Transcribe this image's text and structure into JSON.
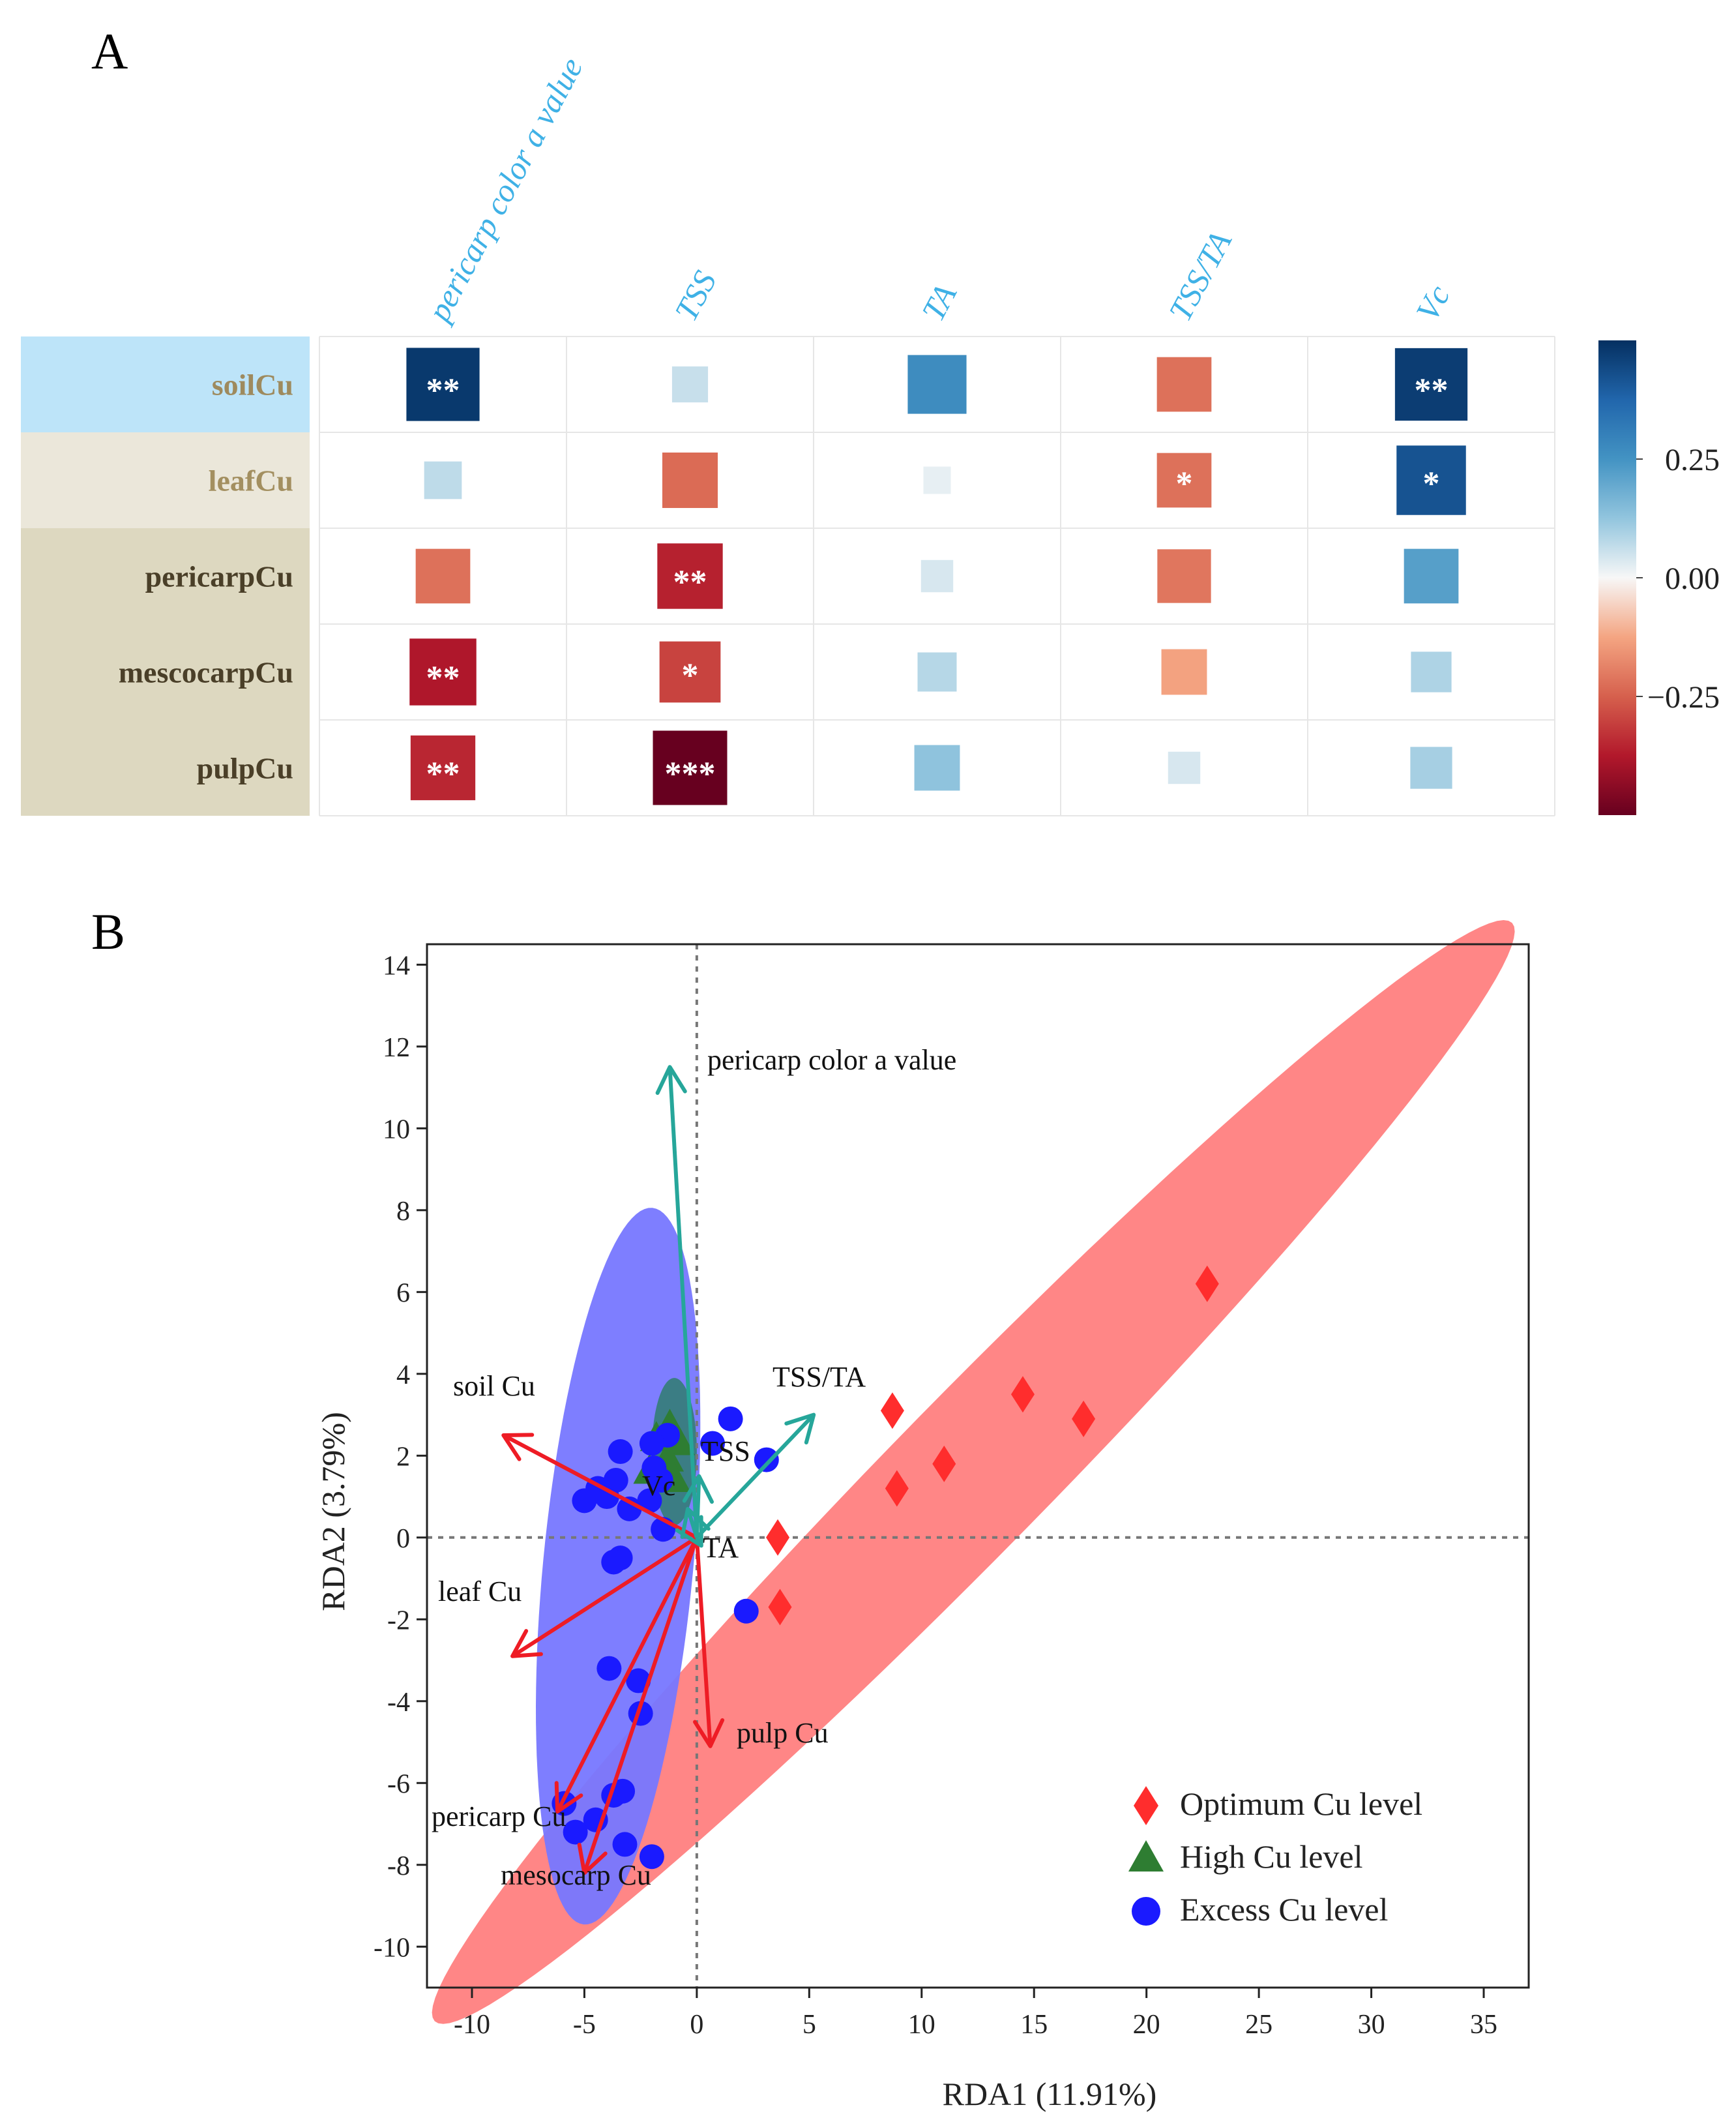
{
  "panel_a_label": "A",
  "panel_b_label": "B",
  "colors": {
    "row_soil_bg": "#bde4f9",
    "row_leaf_bg": "#ebe7da",
    "row_fruit_bg": "#ddd8c0",
    "row_soil_text": "#9e8a5e",
    "row_leaf_text": "#a38f60",
    "row_fruit_text": "#4a3f28",
    "col_text": "#3fb1e6",
    "optimum": "#ff2d2d",
    "high": "#2e7d32",
    "excess": "#1a1aff",
    "ellipse_optimum": "#ff7f7f",
    "ellipse_excess": "#7777ff",
    "ellipse_high": "#2f7d6f",
    "arrow_explanatory": "#ee1c25",
    "arrow_response": "#26a69a"
  },
  "chart_data": [
    {
      "type": "heatmap",
      "title": "",
      "columns": [
        "pericarp color a value",
        "TSS",
        "TA",
        "TSS/TA",
        "Vc"
      ],
      "rows": [
        "soilCu",
        "leafCu",
        "pericarpCu",
        "mescocarpCu",
        "pulpCu"
      ],
      "values": [
        [
          0.48,
          0.06,
          0.27,
          -0.22,
          0.47
        ],
        [
          0.07,
          -0.23,
          0.02,
          -0.22,
          0.42
        ],
        [
          -0.22,
          -0.36,
          0.04,
          -0.21,
          0.22
        ],
        [
          -0.38,
          -0.3,
          0.08,
          -0.13,
          0.09
        ],
        [
          -0.35,
          -0.5,
          0.13,
          0.04,
          0.1
        ]
      ],
      "significance": [
        [
          "**",
          "",
          "",
          "",
          "**"
        ],
        [
          "",
          "",
          "",
          "*",
          "*"
        ],
        [
          "",
          "**",
          "",
          "",
          ""
        ],
        [
          "**",
          "*",
          "",
          "",
          ""
        ],
        [
          "**",
          "***",
          "",
          "",
          ""
        ]
      ],
      "colorbar": {
        "min": -0.5,
        "max": 0.5,
        "ticks": [
          0.25,
          0.0,
          -0.25
        ],
        "tick_labels": [
          "0.25",
          "0.00",
          "−0.25"
        ]
      }
    },
    {
      "type": "scatter",
      "title": "",
      "xlabel": "RDA1 (11.91%)",
      "ylabel": "RDA2 (3.79%)",
      "xlim": [
        -12,
        37
      ],
      "ylim": [
        -11,
        14.5
      ],
      "xticks": [
        -10,
        -5,
        0,
        5,
        10,
        15,
        20,
        25,
        30,
        35
      ],
      "yticks": [
        14,
        12,
        10,
        8,
        6,
        4,
        2,
        0,
        -2,
        -4,
        -6,
        -8,
        -10
      ],
      "xtick_labels": [
        "-10",
        "-5",
        "0",
        "5",
        "10",
        "15",
        "20",
        "25",
        "30",
        "35"
      ],
      "ytick_labels": [
        "14",
        "12",
        "10",
        "8",
        "6",
        "4",
        "2",
        "0",
        "-2",
        "-4",
        "-6",
        "-8",
        "-10"
      ],
      "series": [
        {
          "name": "Optimum Cu level",
          "marker": "diamond",
          "x": [
            22.7,
            14.5,
            17.2,
            8.7,
            11.0,
            8.9,
            3.6,
            3.7
          ],
          "y": [
            6.2,
            3.5,
            2.9,
            3.1,
            1.8,
            1.2,
            0.0,
            -1.7
          ]
        },
        {
          "name": "High Cu level",
          "marker": "triangle",
          "x": [
            -1.2,
            -1.8,
            -0.8,
            -1.3,
            -2.1,
            -1.0
          ],
          "y": [
            2.7,
            2.4,
            2.3,
            1.9,
            1.6,
            1.4
          ]
        },
        {
          "name": "Excess Cu level",
          "marker": "circle",
          "x": [
            1.5,
            0.7,
            -1.3,
            -2.0,
            -3.4,
            -1.9,
            3.1,
            -1.6,
            -4.4,
            -3.6,
            -5.0,
            -4.0,
            -3.0,
            -2.1,
            -1.5,
            -3.4,
            -3.7,
            2.2,
            -3.9,
            -2.6,
            -2.5,
            -3.3,
            -3.7,
            -5.9,
            -4.5,
            -5.4,
            -3.2,
            -2.0
          ],
          "y": [
            2.9,
            2.3,
            2.5,
            2.3,
            2.1,
            1.7,
            1.9,
            1.4,
            1.2,
            1.4,
            0.9,
            1.0,
            0.7,
            0.9,
            0.2,
            -0.5,
            -0.6,
            -1.8,
            -3.2,
            -3.5,
            -4.3,
            -6.2,
            -6.3,
            -6.5,
            -6.9,
            -7.2,
            -7.5,
            -7.8
          ]
        }
      ],
      "ellipses": [
        {
          "group": "Optimum Cu level",
          "cx": 12.3,
          "cy": 1.6,
          "rx": 27.5,
          "ry": 2.35,
          "angle_deg": 29
        },
        {
          "group": "Excess Cu level",
          "cx": -3.5,
          "cy": -0.7,
          "rx": 8.9,
          "ry": 3.3,
          "angle_deg": 79
        },
        {
          "group": "High Cu level",
          "cx": -1.0,
          "cy": 2.1,
          "rx": 1.8,
          "ry": 1.0,
          "angle_deg": 90
        }
      ],
      "arrows": [
        {
          "label": "soil Cu",
          "kind": "explanatory",
          "x": -8.6,
          "y": 2.5
        },
        {
          "label": "leaf Cu",
          "kind": "explanatory",
          "x": -8.2,
          "y": -2.9
        },
        {
          "label": "pericarp Cu",
          "kind": "explanatory",
          "x": -6.2,
          "y": -6.7
        },
        {
          "label": "mesocarp Cu",
          "kind": "explanatory",
          "x": -5.0,
          "y": -8.2
        },
        {
          "label": "pulp Cu",
          "kind": "explanatory",
          "x": 0.6,
          "y": -5.1
        },
        {
          "label": "pericarp color a value",
          "kind": "response",
          "x": -1.2,
          "y": 11.5
        },
        {
          "label": "TSS/TA",
          "kind": "response",
          "x": 5.2,
          "y": 3.0
        },
        {
          "label": "TSS",
          "kind": "response",
          "x": 0.1,
          "y": 1.5
        },
        {
          "label": "Vc",
          "kind": "response",
          "x": -0.4,
          "y": 0.7
        },
        {
          "label": "TA",
          "kind": "response",
          "x": 0.2,
          "y": -0.2
        }
      ]
    }
  ]
}
